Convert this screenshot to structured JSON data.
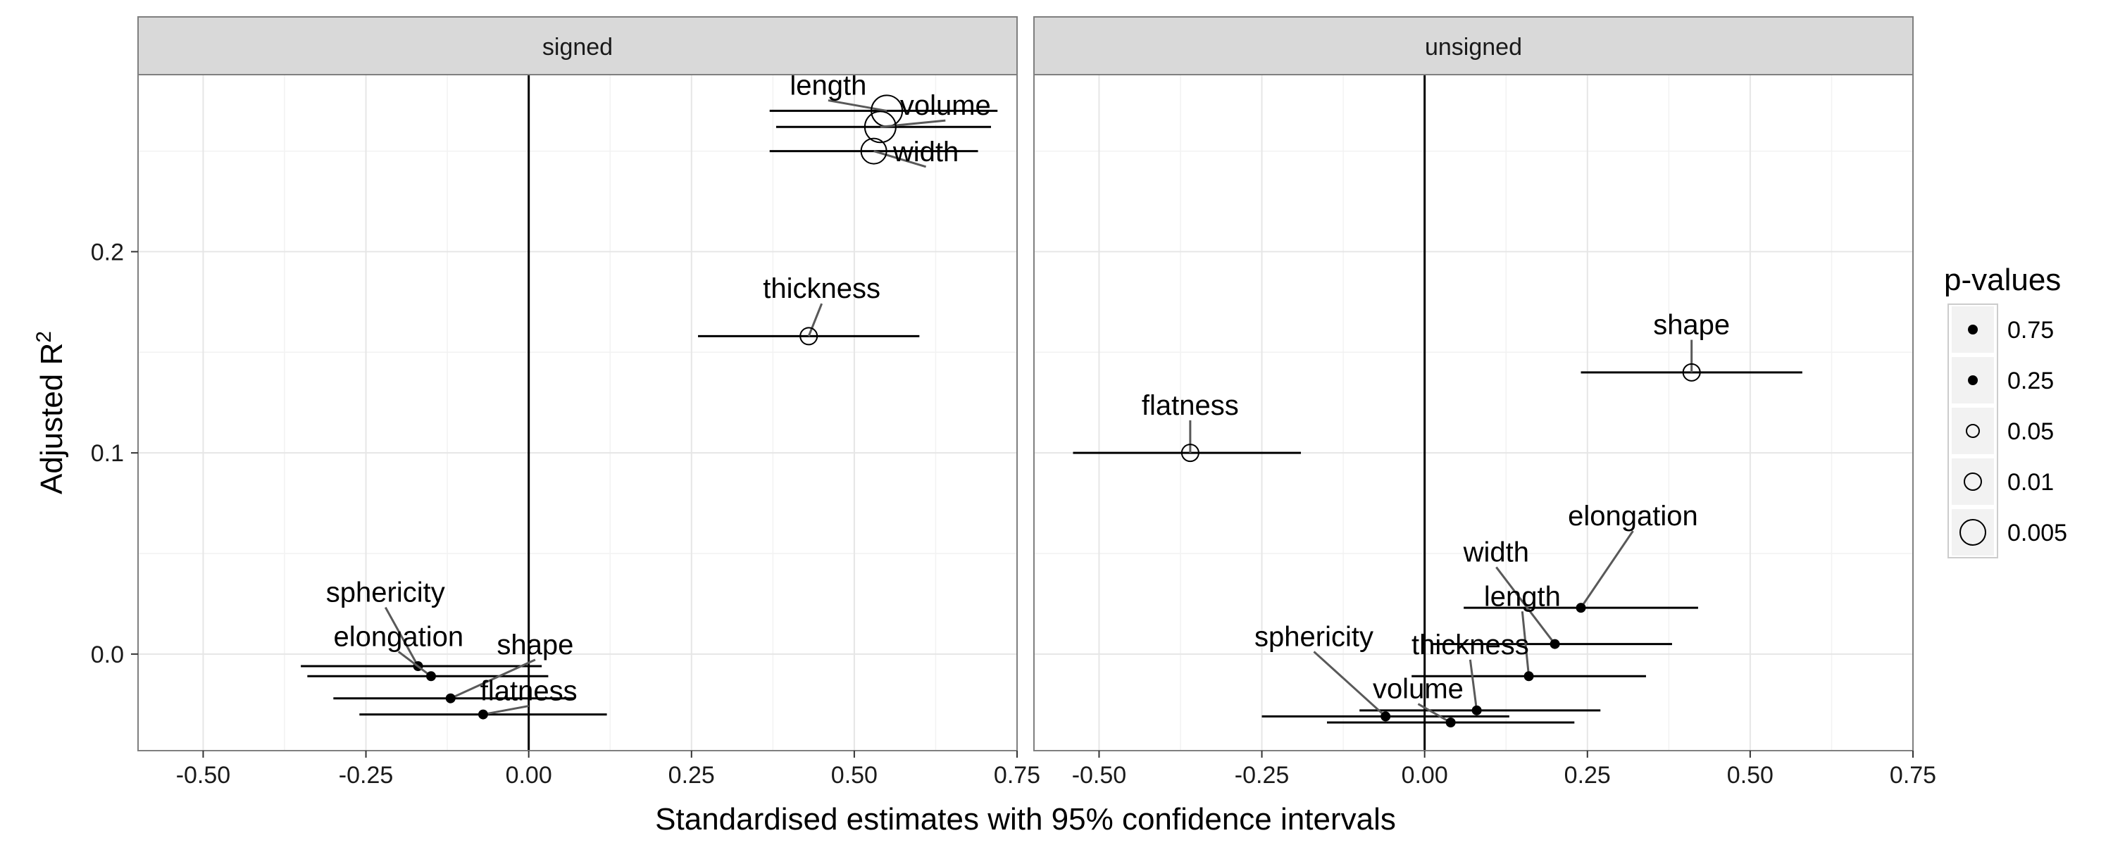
{
  "chart_data": {
    "type": "scatter",
    "xlabel": "Standardised estimates with 95% confidence intervals",
    "ylabel_main": "Adjusted R",
    "ylabel_sup": "2",
    "xlim": [
      -0.6,
      0.75
    ],
    "ylim": [
      -0.048,
      0.288
    ],
    "x_ticks": [
      -0.5,
      -0.25,
      0.0,
      0.25,
      0.5,
      0.75
    ],
    "x_tick_labels": [
      "-0.50",
      "-0.25",
      "0.00",
      "0.25",
      "0.50",
      "0.75"
    ],
    "y_ticks": [
      0.0,
      0.1,
      0.2
    ],
    "y_tick_labels": [
      "0.0",
      "0.1",
      "0.2"
    ],
    "grid": true,
    "vline_x": 0,
    "legend": {
      "title": "p-values",
      "position": "right",
      "entries": [
        {
          "label": "0.75",
          "p": 0.75
        },
        {
          "label": "0.25",
          "p": 0.25
        },
        {
          "label": "0.05",
          "p": 0.05
        },
        {
          "label": "0.01",
          "p": 0.01
        },
        {
          "label": "0.005",
          "p": 0.005
        }
      ]
    },
    "panels": [
      {
        "title": "signed",
        "points": [
          {
            "label": "length",
            "x": 0.55,
            "y": 0.27,
            "lo": 0.37,
            "hi": 0.72,
            "p": 0.004,
            "label_x": 0.46,
            "label_y": 0.278
          },
          {
            "label": "volume",
            "x": 0.54,
            "y": 0.262,
            "lo": 0.38,
            "hi": 0.71,
            "p": 0.004,
            "label_x": 0.64,
            "label_y": 0.268
          },
          {
            "label": "width",
            "x": 0.53,
            "y": 0.25,
            "lo": 0.37,
            "hi": 0.69,
            "p": 0.005,
            "label_x": 0.61,
            "label_y": 0.245
          },
          {
            "label": "thickness",
            "x": 0.43,
            "y": 0.158,
            "lo": 0.26,
            "hi": 0.6,
            "p": 0.02,
            "label_x": 0.45,
            "label_y": 0.177
          },
          {
            "label": "sphericity",
            "x": -0.17,
            "y": -0.006,
            "lo": -0.35,
            "hi": 0.02,
            "p": 0.3,
            "label_x": -0.22,
            "label_y": 0.026
          },
          {
            "label": "elongation",
            "x": -0.15,
            "y": -0.011,
            "lo": -0.34,
            "hi": 0.03,
            "p": 0.3,
            "label_x": -0.2,
            "label_y": 0.004
          },
          {
            "label": "shape",
            "x": -0.12,
            "y": -0.022,
            "lo": -0.3,
            "hi": 0.07,
            "p": 0.4,
            "label_x": 0.01,
            "label_y": 0.0
          },
          {
            "label": "flatness",
            "x": -0.07,
            "y": -0.03,
            "lo": -0.26,
            "hi": 0.12,
            "p": 0.5,
            "label_x": 0.0,
            "label_y": -0.023
          }
        ]
      },
      {
        "title": "unsigned",
        "points": [
          {
            "label": "shape",
            "x": 0.41,
            "y": 0.14,
            "lo": 0.24,
            "hi": 0.58,
            "p": 0.03,
            "label_x": 0.41,
            "label_y": 0.159
          },
          {
            "label": "flatness",
            "x": -0.36,
            "y": 0.1,
            "lo": -0.54,
            "hi": -0.19,
            "p": 0.03,
            "label_x": -0.36,
            "label_y": 0.119
          },
          {
            "label": "elongation",
            "x": 0.24,
            "y": 0.023,
            "lo": 0.06,
            "hi": 0.42,
            "p": 0.5,
            "label_x": 0.32,
            "label_y": 0.064
          },
          {
            "label": "width",
            "x": 0.2,
            "y": 0.005,
            "lo": 0.01,
            "hi": 0.38,
            "p": 0.5,
            "label_x": 0.11,
            "label_y": 0.046
          },
          {
            "label": "length",
            "x": 0.16,
            "y": -0.011,
            "lo": -0.02,
            "hi": 0.34,
            "p": 0.5,
            "label_x": 0.15,
            "label_y": 0.024
          },
          {
            "label": "thickness",
            "x": 0.08,
            "y": -0.028,
            "lo": -0.1,
            "hi": 0.27,
            "p": 0.5,
            "label_x": 0.07,
            "label_y": 0.0
          },
          {
            "label": "sphericity",
            "x": -0.06,
            "y": -0.031,
            "lo": -0.25,
            "hi": 0.13,
            "p": 0.5,
            "label_x": -0.17,
            "label_y": 0.004
          },
          {
            "label": "volume",
            "x": 0.04,
            "y": -0.034,
            "lo": -0.15,
            "hi": 0.23,
            "p": 0.5,
            "label_x": -0.01,
            "label_y": -0.022
          }
        ]
      }
    ]
  }
}
